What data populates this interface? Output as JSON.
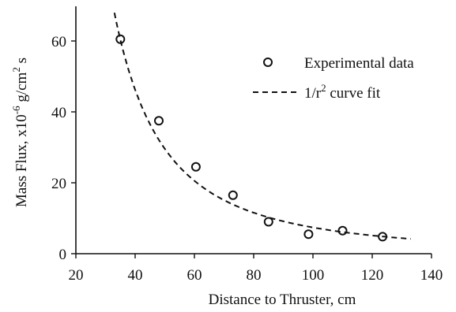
{
  "chart_data": {
    "type": "scatter",
    "title": "",
    "xlabel": "Distance to Thruster, cm",
    "ylabel_main": "Mass Flux, x10",
    "ylabel_exp": "-6",
    "ylabel_mid": " g/cm",
    "ylabel_exp2": "2",
    "ylabel_end": " s",
    "xlim": [
      20,
      140
    ],
    "ylim": [
      0,
      70
    ],
    "xticks": [
      20,
      40,
      60,
      80,
      100,
      120,
      140
    ],
    "yticks": [
      0,
      20,
      40,
      60
    ],
    "grid": false,
    "legend_position": "top-right",
    "series": [
      {
        "name": "Experimental data",
        "kind": "scatter",
        "marker": "open-circle",
        "x": [
          35,
          48,
          60.5,
          73,
          85,
          98.5,
          110,
          123.5
        ],
        "y": [
          60.5,
          37.5,
          24.5,
          16.5,
          9,
          5.5,
          6.5,
          4.8
        ]
      },
      {
        "name_prefix": "1/r",
        "name_exp": "2",
        "name_suffix": " curve fit",
        "kind": "line",
        "style": "dashed",
        "function": "k/r^2",
        "k": 74000,
        "x_range": [
          30,
          133
        ]
      }
    ]
  }
}
